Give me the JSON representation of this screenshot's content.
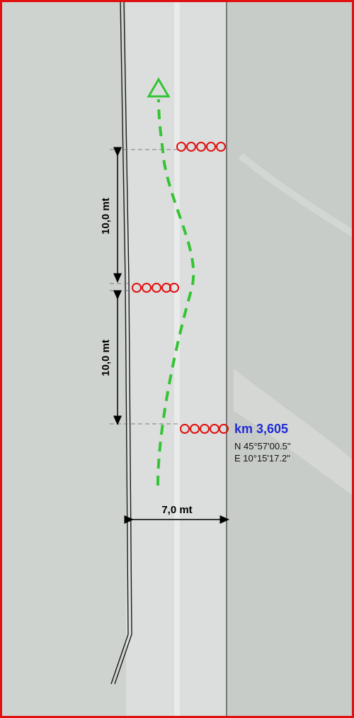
{
  "diagram": {
    "dimensions": {
      "upper_spacing": "10,0 mt",
      "lower_spacing": "10,0 mt",
      "road_width": "7,0 mt"
    },
    "marker": {
      "km_label": "km 3,605",
      "lat": "N 45°57'00.5\"",
      "lon": "E 10°15'17.2\""
    },
    "colors": {
      "frame": "#e01010",
      "cones": "#e01010",
      "path": "#35c435",
      "km_text": "#1f2bd1"
    },
    "cone_groups": [
      {
        "position": "top-right",
        "count": 5
      },
      {
        "position": "middle-left",
        "count": 5
      },
      {
        "position": "bottom-right",
        "count": 5
      }
    ],
    "arrow_direction": "up"
  }
}
